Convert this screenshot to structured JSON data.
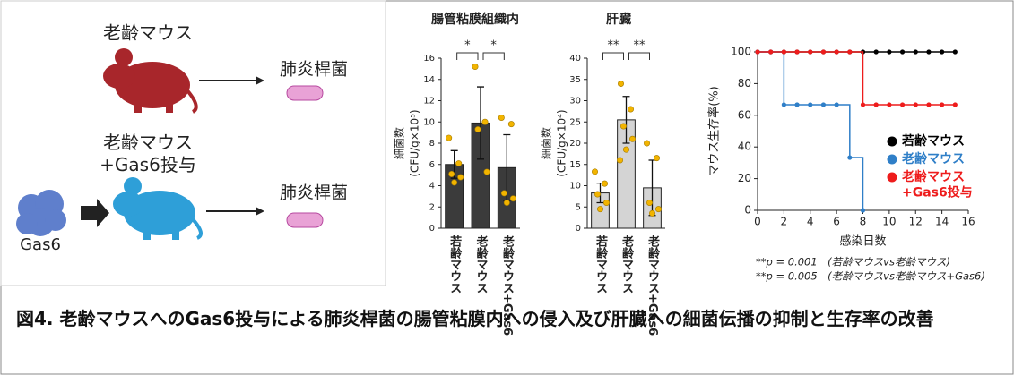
{
  "diagram": {
    "old_mouse": "老齢マウス",
    "pathogen_1": "肺炎桿菌",
    "treated_mouse": "老齢マウス\n+Gas6投与",
    "drug": "Gas6",
    "pathogen_2": "肺炎桿菌"
  },
  "chart_data": [
    {
      "type": "bar",
      "title": "腸管粘膜組織内",
      "ylabel": [
        "細菌数",
        "(CFU/g×10⁵)"
      ],
      "categories": [
        "若齢マウス",
        "老齢マウス",
        "老齢マウス+Gas6"
      ],
      "values": [
        6.0,
        9.9,
        5.7
      ],
      "errors": [
        1.3,
        3.4,
        3.1
      ],
      "points": [
        [
          8.5,
          6.1,
          5.1,
          4.8,
          4.3
        ],
        [
          15.2,
          10.0,
          9.3,
          5.3
        ],
        [
          10.4,
          9.8,
          3.3,
          2.8,
          2.4
        ]
      ],
      "color": "#3b3b3b",
      "point_color": "#f2b400",
      "annotations": [
        "*",
        "*"
      ],
      "ylim": [
        0,
        16
      ],
      "yticks": [
        0,
        2,
        4,
        6,
        8,
        10,
        12,
        14,
        16
      ]
    },
    {
      "type": "bar",
      "title": "肝臓",
      "ylabel": [
        "細菌数",
        "(CFU/g×10⁴)"
      ],
      "categories": [
        "若齢マウス",
        "老齢マウス",
        "老齢マウス+Gas6"
      ],
      "values": [
        8.3,
        25.5,
        9.5
      ],
      "errors": [
        2.3,
        5.5,
        6.5
      ],
      "points": [
        [
          13.3,
          10.5,
          8.0,
          6.0,
          4.5
        ],
        [
          34,
          28,
          24,
          21,
          18.5,
          16
        ],
        [
          20,
          16.5,
          6.0,
          4.5,
          3.5
        ]
      ],
      "color": "#d4d4d4",
      "point_color": "#f2b400",
      "annotations": [
        "**",
        "**"
      ],
      "ylim": [
        0,
        40
      ],
      "yticks": [
        0,
        5,
        10,
        15,
        20,
        25,
        30,
        35,
        40
      ]
    },
    {
      "type": "line",
      "xlabel": "感染日数",
      "ylabel": "マウス生存率(%)",
      "series": [
        {
          "name": "若齢マウス",
          "color": "#000000",
          "x": [
            0,
            1,
            2,
            3,
            4,
            5,
            6,
            7,
            8,
            9,
            10,
            11,
            12,
            13,
            14,
            15
          ],
          "values": [
            100,
            100,
            100,
            100,
            100,
            100,
            100,
            100,
            100,
            100,
            100,
            100,
            100,
            100,
            100,
            100
          ]
        },
        {
          "name": "老齢マウス",
          "color": "#2f7fc8",
          "x": [
            0,
            1,
            2,
            3,
            4,
            5,
            6,
            7,
            8
          ],
          "values": [
            100,
            100,
            66.7,
            66.7,
            66.7,
            66.7,
            66.7,
            33.3,
            0
          ]
        },
        {
          "name": "老齢マウス\n+Gas6投与",
          "color": "#ee1c1c",
          "x": [
            0,
            1,
            2,
            3,
            4,
            5,
            6,
            7,
            8,
            9,
            10,
            11,
            12,
            13,
            14,
            15
          ],
          "values": [
            100,
            100,
            100,
            100,
            100,
            100,
            100,
            100,
            66.7,
            66.7,
            66.7,
            66.7,
            66.7,
            66.7,
            66.7,
            66.7
          ]
        }
      ],
      "xlim": [
        0,
        16
      ],
      "xticks": [
        0,
        2,
        4,
        6,
        8,
        10,
        12,
        14,
        16
      ],
      "ylim": [
        0,
        100
      ],
      "yticks": [
        0,
        20,
        40,
        60,
        80,
        100
      ],
      "notes": [
        "**p = 0.001　(若齢マウスvs老齢マウス)",
        "**p = 0.005　(老齢マウスvs老齢マウス+Gas6)"
      ]
    }
  ],
  "caption": "図4. 老齢マウスへのGas6投与による肺炎桿菌の腸管粘膜内への侵入及び肝臓への細菌伝播の抑制と生存率の改善"
}
